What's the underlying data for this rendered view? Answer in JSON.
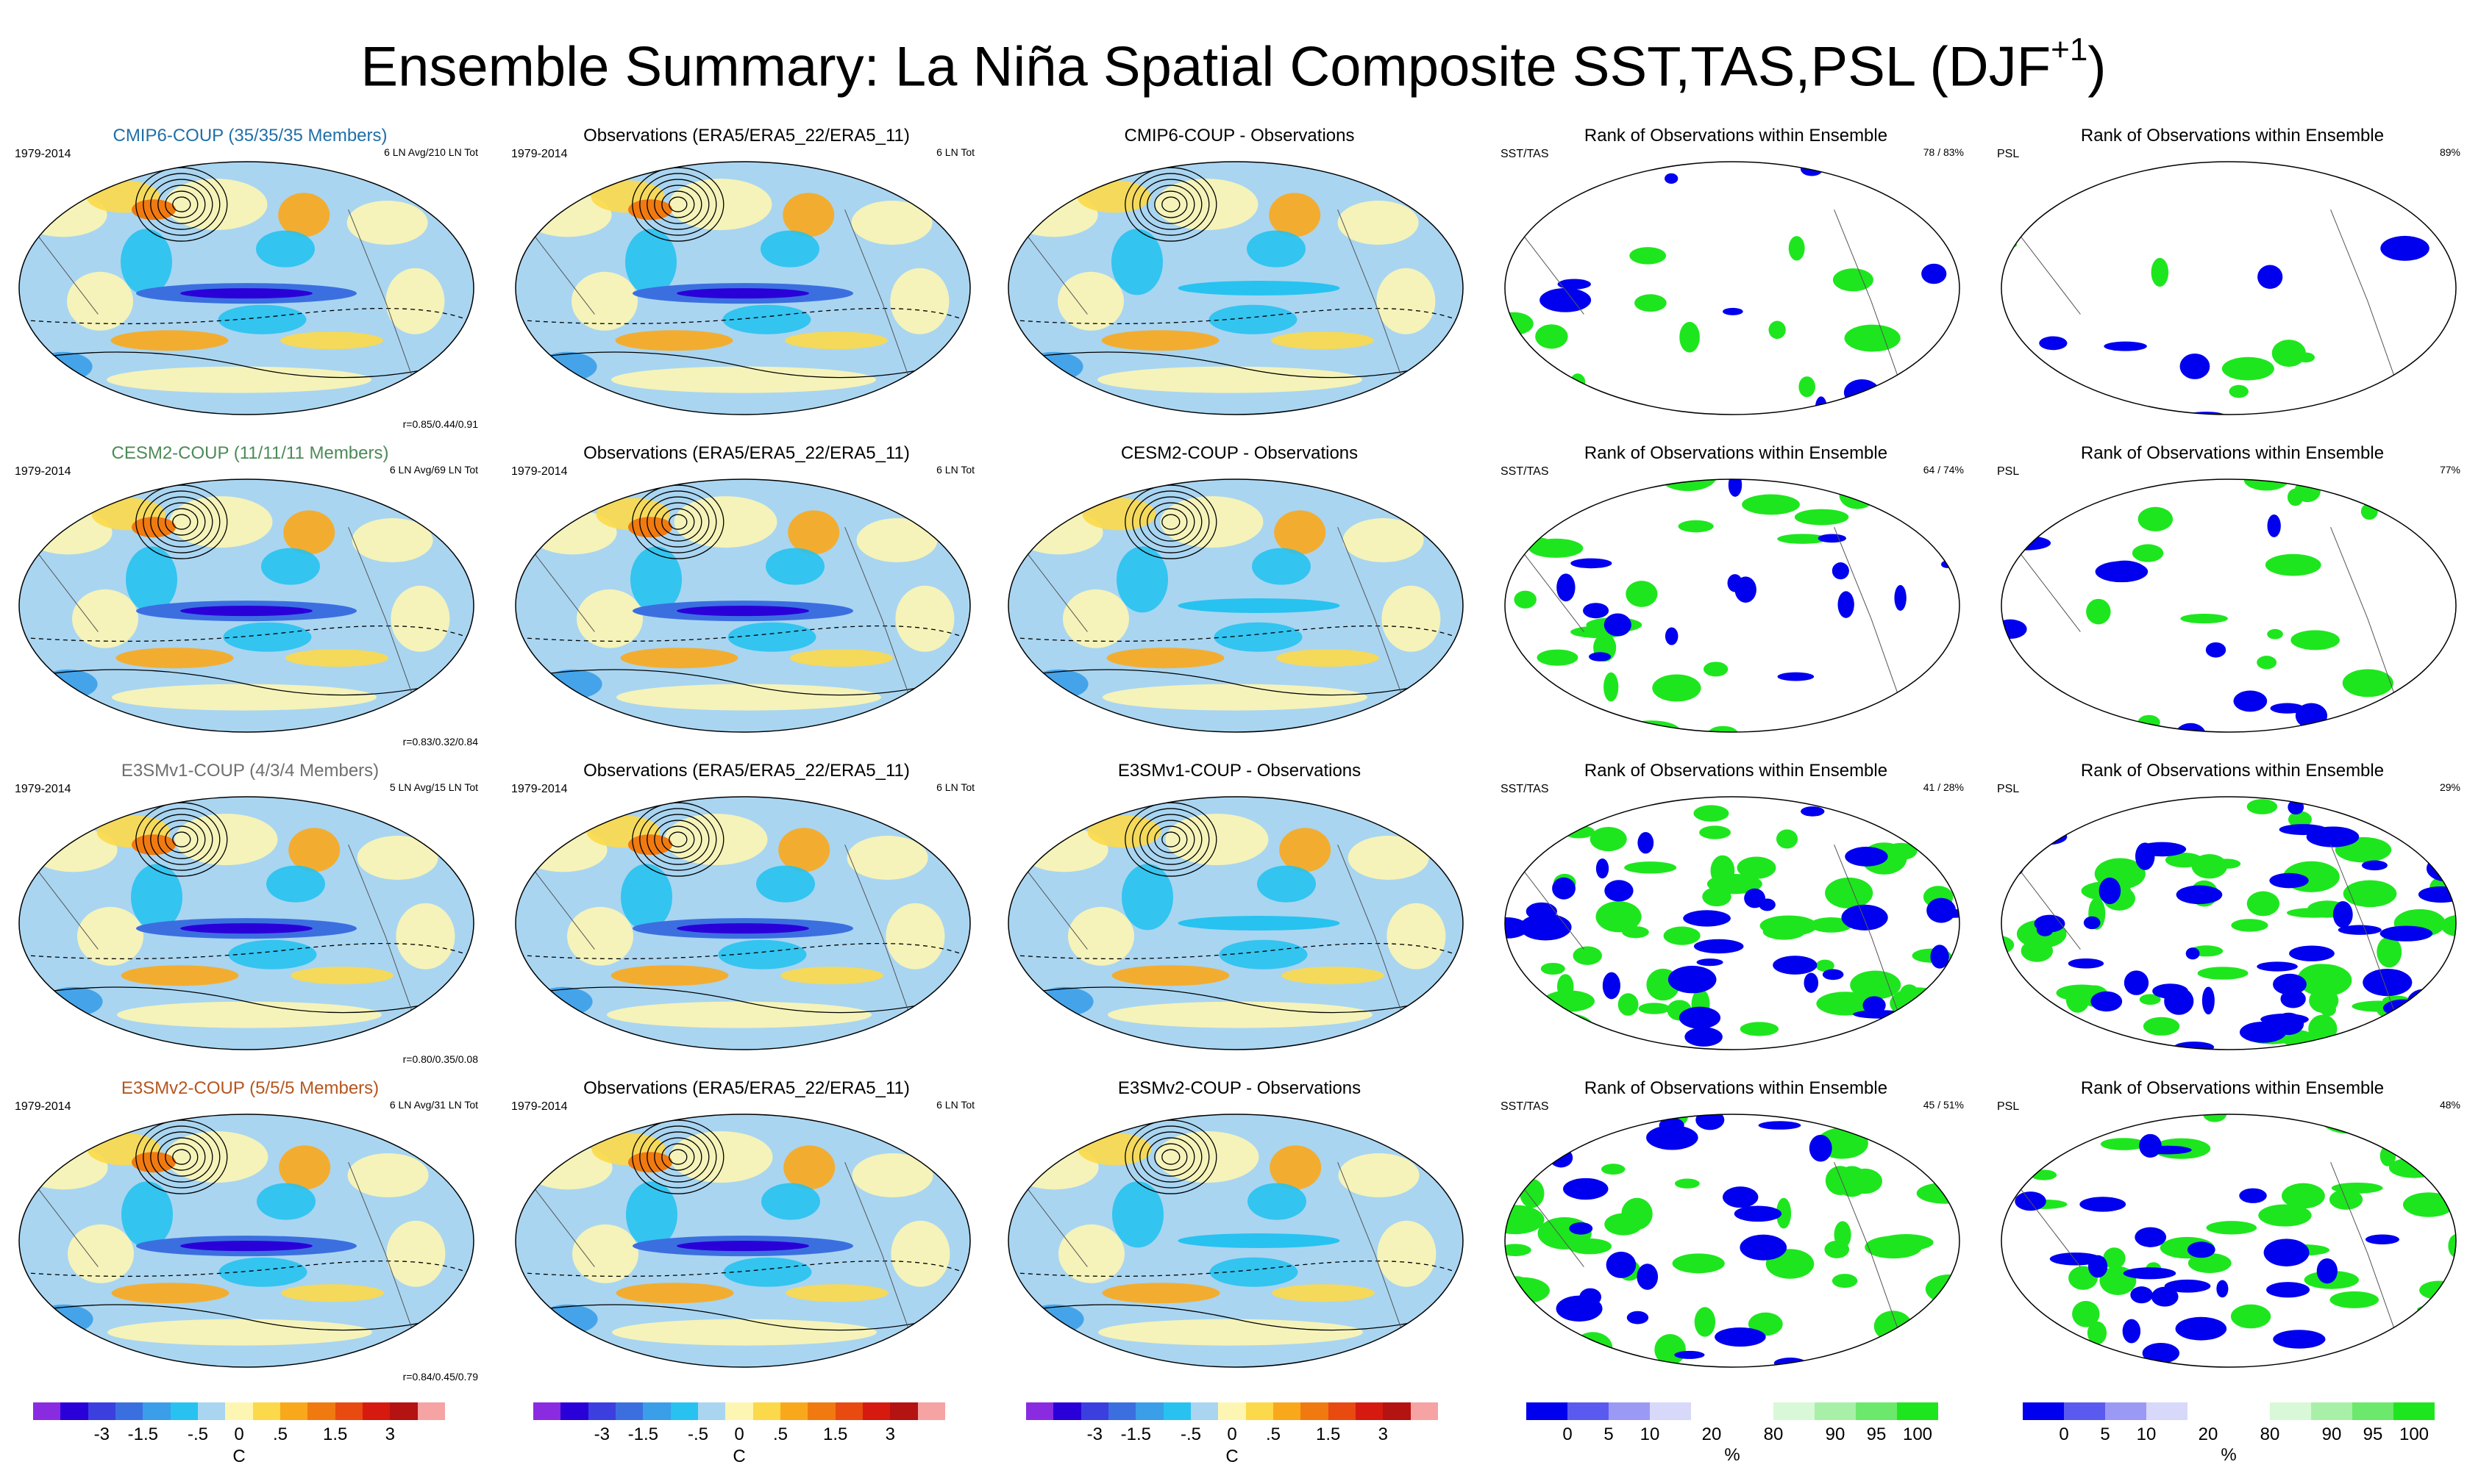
{
  "figure": {
    "title": "Ensemble Summary: La Niña Spatial Composite SST,TAS,PSL (DJF",
    "title_sup": "+1",
    "title_close": ")"
  },
  "colors": {
    "cmip6": "#1f6fa8",
    "cesm2": "#4d8a57",
    "e3smv1": "#6f6f6f",
    "e3smv2": "#b5561f",
    "ocean_base": "#a9d5f1",
    "land_tint": "#fce690",
    "rank_blue": "#0000ee",
    "rank_green": "#1ee61e"
  },
  "rows": [
    {
      "model_title": "CMIP6-COUP (35/35/35 Members)",
      "model_color": "#1f6fa8",
      "years": "1979-2014",
      "model_info": "6 LN Avg/210 LN Tot",
      "corr": "r=0.85/0.44/0.91",
      "obs_title": "Observations (ERA5/ERA5_22/ERA5_11)",
      "obs_years": "1979-2014",
      "obs_info": "6 LN Tot",
      "diff_title": "CMIP6-COUP - Observations",
      "rank_title": "Rank of Observations within Ensemble",
      "rank_sst_label": "SST/TAS",
      "rank_sst_pct": "78 /  83%",
      "rank_psl_label": "PSL",
      "rank_psl_pct": "89%",
      "rank_green_frac": 0.12,
      "rank_blue_frac": 0.08,
      "psl_green_frac": 0.06,
      "psl_blue_frac": 0.05
    },
    {
      "model_title": "CESM2-COUP (11/11/11 Members)",
      "model_color": "#4d8a57",
      "years": "1979-2014",
      "model_info": "6 LN Avg/69 LN Tot",
      "corr": "r=0.83/0.32/0.84",
      "obs_title": "Observations (ERA5/ERA5_22/ERA5_11)",
      "obs_years": "1979-2014",
      "obs_info": "6 LN Tot",
      "diff_title": "CESM2-COUP - Observations",
      "rank_title": "Rank of Observations within Ensemble",
      "rank_sst_label": "SST/TAS",
      "rank_sst_pct": "64 /  74%",
      "rank_psl_label": "PSL",
      "rank_psl_pct": "77%",
      "rank_green_frac": 0.18,
      "rank_blue_frac": 0.14,
      "psl_green_frac": 0.16,
      "psl_blue_frac": 0.1
    },
    {
      "model_title": "E3SMv1-COUP (4/3/4 Members)",
      "model_color": "#6f6f6f",
      "years": "1979-2014",
      "model_info": "5 LN Avg/15 LN Tot",
      "corr": "r=0.80/0.35/0.08",
      "obs_title": "Observations (ERA5/ERA5_22/ERA5_11)",
      "obs_years": "1979-2014",
      "obs_info": "6 LN Tot",
      "diff_title": "E3SMv1-COUP - Observations",
      "rank_title": "Rank of Observations within Ensemble",
      "rank_sst_label": "SST/TAS",
      "rank_sst_pct": "41 /  28%",
      "rank_psl_label": "PSL",
      "rank_psl_pct": "29%",
      "rank_green_frac": 0.38,
      "rank_blue_frac": 0.28,
      "psl_green_frac": 0.42,
      "psl_blue_frac": 0.36
    },
    {
      "model_title": "E3SMv2-COUP (5/5/5 Members)",
      "model_color": "#b5561f",
      "years": "1979-2014",
      "model_info": "6 LN Avg/31 LN Tot",
      "corr": "r=0.84/0.45/0.79",
      "obs_title": "Observations (ERA5/ERA5_22/ERA5_11)",
      "obs_years": "1979-2014",
      "obs_info": "6 LN Tot",
      "diff_title": "E3SMv2-COUP - Observations",
      "rank_title": "Rank of Observations within Ensemble",
      "rank_sst_label": "SST/TAS",
      "rank_sst_pct": "45 /  51%",
      "rank_psl_label": "PSL",
      "rank_psl_pct": "48%",
      "rank_green_frac": 0.34,
      "rank_blue_frac": 0.22,
      "psl_green_frac": 0.3,
      "psl_blue_frac": 0.24
    }
  ],
  "legends": {
    "temp": {
      "colors": [
        "#8a2be2",
        "#2a00d9",
        "#3b3fe0",
        "#3b6fe0",
        "#3a9ee8",
        "#27c2f0",
        "#a9d5f1",
        "#fdf6b2",
        "#fcd94a",
        "#f9a81c",
        "#f07a10",
        "#e84a10",
        "#d61a10",
        "#b51212",
        "#f5a3a3"
      ],
      "ticks": [
        "-3",
        "-1.5",
        "-.5",
        "0",
        ".5",
        "1.5",
        "3"
      ],
      "unit": "C"
    },
    "rank": {
      "colors": [
        "#0000ee",
        "#5a5af0",
        "#9a9af5",
        "#d8d8fa",
        "#ffffff",
        "#ffffff",
        "#d8f8d8",
        "#a8f0a8",
        "#6ce86c",
        "#1ee61e"
      ],
      "ticks": [
        "0",
        "5",
        "10",
        "20",
        "%",
        "80",
        "90",
        "95",
        "100"
      ],
      "unit": "%"
    }
  }
}
